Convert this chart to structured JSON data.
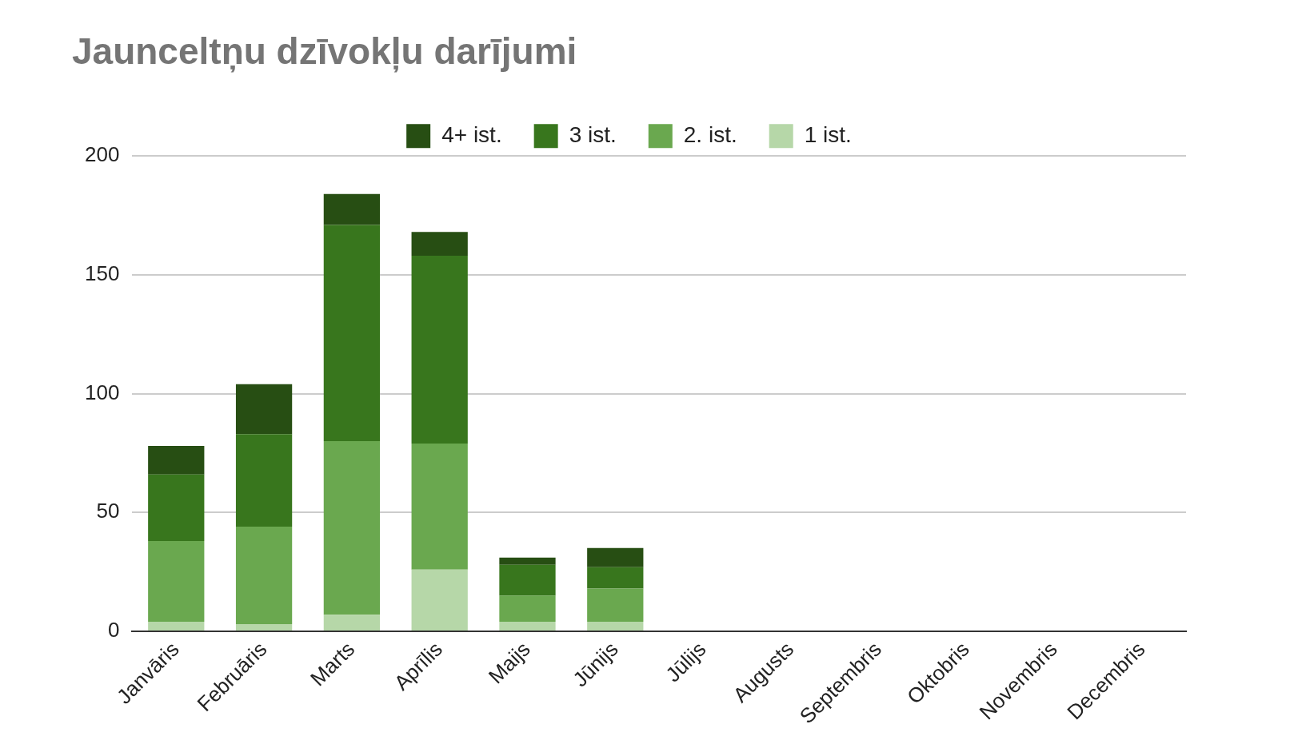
{
  "chart_data": {
    "type": "bar",
    "title": "Jaunceltņu dzīvokļu darījumi",
    "categories": [
      "Janvāris",
      "Februāris",
      "Marts",
      "Aprīlis",
      "Maijs",
      "Jūnijs",
      "Jūlijs",
      "Augusts",
      "Septembris",
      "Oktobris",
      "Novembris",
      "Decembris"
    ],
    "stacked": true,
    "series": [
      {
        "name": "1 ist.",
        "color": "#b6d7a8",
        "values": [
          4,
          3,
          7,
          26,
          4,
          4,
          null,
          null,
          null,
          null,
          null,
          null
        ]
      },
      {
        "name": "2. ist.",
        "color": "#6aa84f",
        "values": [
          34,
          41,
          73,
          53,
          11,
          14,
          null,
          null,
          null,
          null,
          null,
          null
        ]
      },
      {
        "name": "3 ist.",
        "color": "#38761d",
        "values": [
          28,
          39,
          91,
          79,
          13,
          9,
          null,
          null,
          null,
          null,
          null,
          null
        ]
      },
      {
        "name": "4+ ist.",
        "color": "#274e13",
        "values": [
          12,
          21,
          13,
          10,
          3,
          8,
          null,
          null,
          null,
          null,
          null,
          null
        ]
      }
    ],
    "ylim": [
      0,
      200
    ],
    "yticks": [
      0,
      50,
      100,
      150,
      200
    ],
    "grid": "y",
    "legend": "top"
  }
}
